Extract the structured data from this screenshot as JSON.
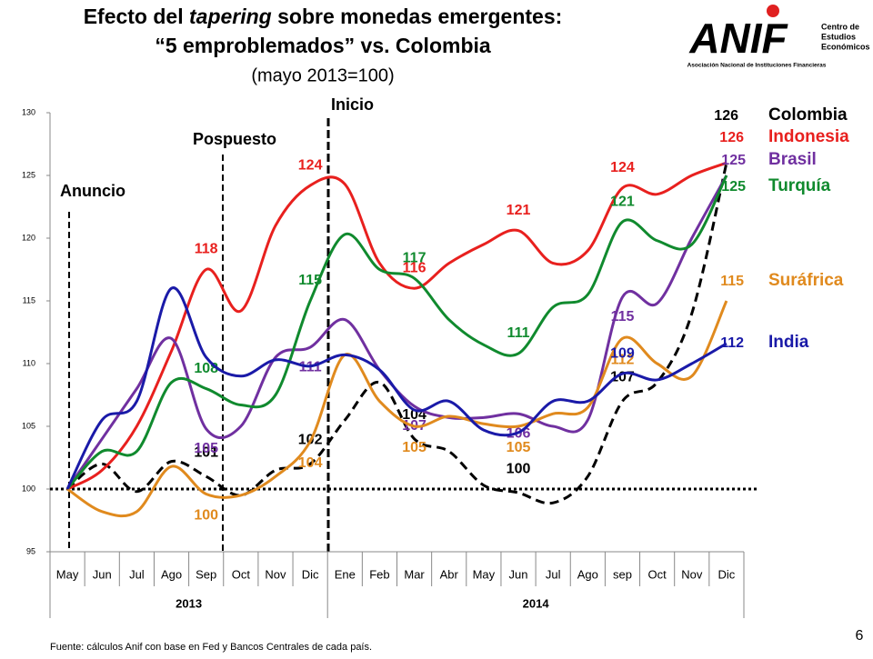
{
  "header": {
    "title_parts": [
      "Efecto del ",
      "tapering",
      " sobre monedas emergentes:"
    ],
    "title_line2": "“5 emproblemados” vs. Colombia",
    "subtitle": "(mayo 2013=100)",
    "logo": {
      "name": "ANIF",
      "line1": "Centro de",
      "line2": "Estudios",
      "line3": "Económicos",
      "tagline": "Asociación Nacional de Instituciones Financieras"
    }
  },
  "chart_data": {
    "type": "line",
    "categories": [
      "May",
      "Jun",
      "Jul",
      "Ago",
      "Sep",
      "Oct",
      "Nov",
      "Dic",
      "Ene",
      "Feb",
      "Mar",
      "Abr",
      "May",
      "Jun",
      "Jul",
      "Ago",
      "sep",
      "Oct",
      "Nov",
      "Dic"
    ],
    "year_groups": [
      {
        "label": "2013",
        "span": 8
      },
      {
        "label": "2014",
        "span": 12
      }
    ],
    "ylim": [
      95,
      130
    ],
    "yticks": [
      95,
      100,
      105,
      110,
      115,
      120,
      125,
      130
    ],
    "reference_line": 100,
    "annotations": [
      "Anuncio",
      "Pospuesto",
      "Inicio"
    ],
    "series": [
      {
        "name": "Colombia",
        "color": "#000000",
        "dashed": true,
        "values": [
          100,
          102,
          99.8,
          102.2,
          101,
          99.5,
          101.5,
          102,
          105.5,
          108.5,
          104,
          103,
          100.3,
          99.7,
          98.9,
          101,
          107,
          108.5,
          114,
          126
        ],
        "value_labels": [
          null,
          null,
          null,
          null,
          "101",
          null,
          null,
          "102",
          null,
          null,
          "104",
          null,
          null,
          "100",
          null,
          null,
          "107",
          null,
          null,
          "126"
        ]
      },
      {
        "name": "Indonesia",
        "color": "#e8201e",
        "dashed": false,
        "values": [
          100,
          101.5,
          105,
          111,
          117.5,
          114.2,
          121,
          124.2,
          124.3,
          118,
          116,
          118,
          119.5,
          120.6,
          118,
          119,
          124,
          123.5,
          125,
          126
        ],
        "value_labels": [
          null,
          null,
          null,
          null,
          "118",
          null,
          null,
          "124",
          null,
          null,
          "116",
          null,
          null,
          "121",
          null,
          null,
          "124",
          null,
          null,
          "126"
        ]
      },
      {
        "name": "Brasil",
        "color": "#7030a0",
        "dashed": false,
        "values": [
          100,
          104,
          108,
          112,
          104.8,
          105,
          110.5,
          111.3,
          113.5,
          109.5,
          106.6,
          105.7,
          105.7,
          106,
          105,
          105.5,
          115.3,
          114.8,
          120,
          125
        ],
        "value_labels": [
          null,
          null,
          null,
          null,
          "105",
          null,
          null,
          "111",
          null,
          null,
          "107",
          null,
          null,
          "106",
          null,
          null,
          "115",
          null,
          null,
          "125"
        ]
      },
      {
        "name": "Turquía",
        "color": "#108a2e",
        "dashed": false,
        "values": [
          100,
          103,
          103,
          108.5,
          108,
          106.7,
          107.5,
          115,
          120.3,
          117.5,
          116.8,
          113.5,
          111.5,
          110.8,
          114.5,
          115.5,
          121.3,
          119.8,
          119.5,
          125
        ],
        "value_labels": [
          null,
          null,
          null,
          null,
          "108",
          null,
          null,
          "115",
          null,
          null,
          "117",
          null,
          null,
          "111",
          null,
          null,
          "121",
          null,
          null,
          "125"
        ]
      },
      {
        "name": "Suráfrica",
        "color": "#e08a1e",
        "dashed": false,
        "values": [
          100,
          98.2,
          98.2,
          101.8,
          99.6,
          99.5,
          101,
          103.8,
          110.7,
          107,
          105,
          105.8,
          105.2,
          105,
          106,
          106.5,
          112,
          110,
          109,
          115
        ],
        "value_labels": [
          null,
          null,
          null,
          null,
          "100",
          null,
          null,
          "104",
          null,
          null,
          "105",
          null,
          null,
          "105",
          null,
          null,
          "112",
          null,
          null,
          "115"
        ]
      },
      {
        "name": "India",
        "color": "#1a1aa8",
        "dashed": false,
        "values": [
          100,
          105.5,
          107,
          116,
          110.5,
          109,
          110.3,
          109.8,
          110.7,
          109.5,
          106.3,
          107,
          104.7,
          104.5,
          107,
          107,
          109.2,
          108.7,
          110,
          111.6
        ],
        "value_labels": [
          null,
          null,
          null,
          null,
          null,
          null,
          null,
          null,
          null,
          null,
          null,
          null,
          null,
          null,
          null,
          null,
          "109",
          null,
          null,
          "112"
        ]
      }
    ]
  },
  "footer": {
    "source": "Fuente: cálculos Anif con base en Fed y Bancos Centrales de cada país.",
    "page": "6"
  }
}
